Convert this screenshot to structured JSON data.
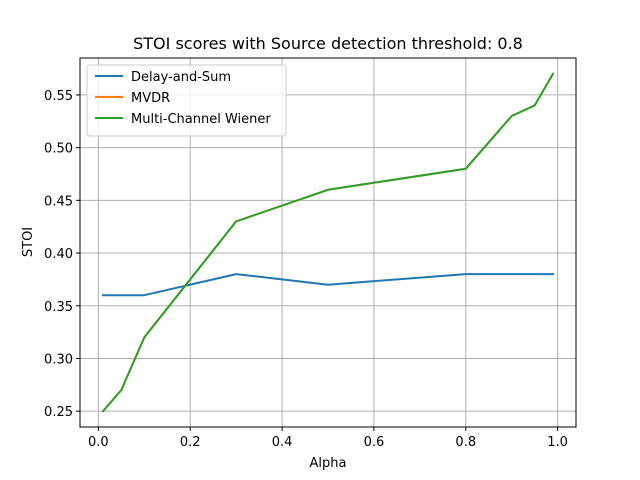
{
  "chart_data": {
    "type": "line",
    "title": "STOI scores with Source detection threshold: 0.8",
    "xlabel": "Alpha",
    "ylabel": "STOI",
    "xlim": [
      -0.04,
      1.04
    ],
    "ylim": [
      0.235,
      0.585
    ],
    "xticks": [
      0.0,
      0.2,
      0.4,
      0.6,
      0.8,
      1.0
    ],
    "xtick_labels": [
      "0.0",
      "0.2",
      "0.4",
      "0.6",
      "0.8",
      "1.0"
    ],
    "yticks": [
      0.25,
      0.3,
      0.35,
      0.4,
      0.45,
      0.5,
      0.55
    ],
    "ytick_labels": [
      "0.25",
      "0.30",
      "0.35",
      "0.40",
      "0.45",
      "0.50",
      "0.55"
    ],
    "grid": true,
    "legend_position": "top-left",
    "series": [
      {
        "name": "Delay-and-Sum",
        "color": "#1f77b4",
        "x": [
          0.01,
          0.1,
          0.3,
          0.5,
          0.8,
          0.99
        ],
        "y": [
          0.36,
          0.36,
          0.38,
          0.37,
          0.38,
          0.38
        ]
      },
      {
        "name": "MVDR",
        "color": "#ff7f0e",
        "x": [
          0.01,
          0.05,
          0.1,
          0.3,
          0.5,
          0.8,
          0.9,
          0.95,
          0.99
        ],
        "y": [
          0.25,
          0.27,
          0.32,
          0.43,
          0.46,
          0.48,
          0.53,
          0.54,
          0.57
        ]
      },
      {
        "name": "Multi-Channel Wiener",
        "color": "#2ca02c",
        "x": [
          0.01,
          0.05,
          0.1,
          0.3,
          0.5,
          0.8,
          0.9,
          0.95,
          0.99
        ],
        "y": [
          0.25,
          0.27,
          0.32,
          0.43,
          0.46,
          0.48,
          0.53,
          0.54,
          0.57
        ]
      }
    ]
  }
}
